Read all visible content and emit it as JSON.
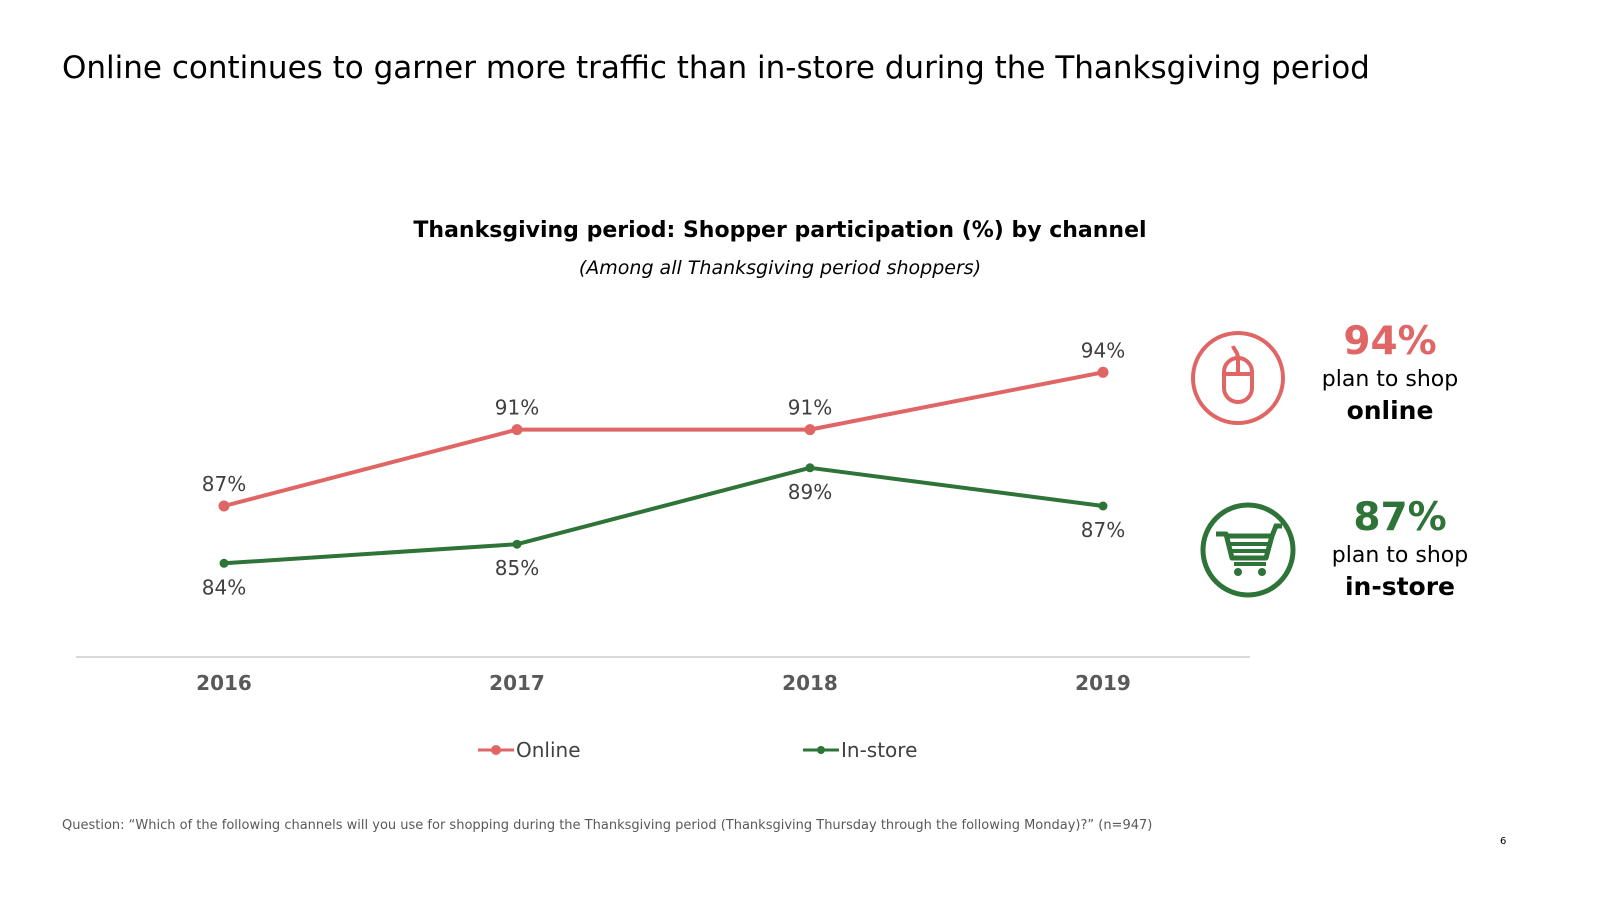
{
  "slide": {
    "title": "Online continues to garner more traffic than in-store during the Thanksgiving period",
    "footnote": "Question: “Which of the following channels will you use for shopping during the Thanksgiving period (Thanksgiving Thursday through the following Monday)?” (n=947)",
    "page_number": "6"
  },
  "callouts": {
    "online": {
      "value": "94%",
      "line1": "plan to shop",
      "line2": "online",
      "icon": "computer-mouse-icon"
    },
    "instore": {
      "value": "87%",
      "line1": "plan to shop",
      "line2": "in-store",
      "icon": "shopping-cart-icon"
    }
  },
  "legend": {
    "online": "Online",
    "instore": "In-store"
  },
  "colors": {
    "online": "#e06666",
    "instore": "#2e7337",
    "axis": "#d9d9d9",
    "labels": "#404040"
  },
  "chart_data": {
    "type": "line",
    "title": "Thanksgiving period: Shopper participation (%) by channel",
    "subtitle": "(Among all Thanksgiving period shoppers)",
    "categories": [
      "2016",
      "2017",
      "2018",
      "2019"
    ],
    "series": [
      {
        "name": "Online",
        "values": [
          87,
          91,
          91,
          94
        ],
        "labels": [
          "87%",
          "91%",
          "91%",
          "94%"
        ],
        "color": "#e06666",
        "label_position": "above"
      },
      {
        "name": "In-store",
        "values": [
          84,
          85,
          89,
          87
        ],
        "labels": [
          "84%",
          "85%",
          "89%",
          "87%"
        ],
        "color": "#2e7337",
        "label_position": "below"
      }
    ],
    "xlabel": "",
    "ylabel": "",
    "grid": false,
    "legend_position": "bottom"
  }
}
